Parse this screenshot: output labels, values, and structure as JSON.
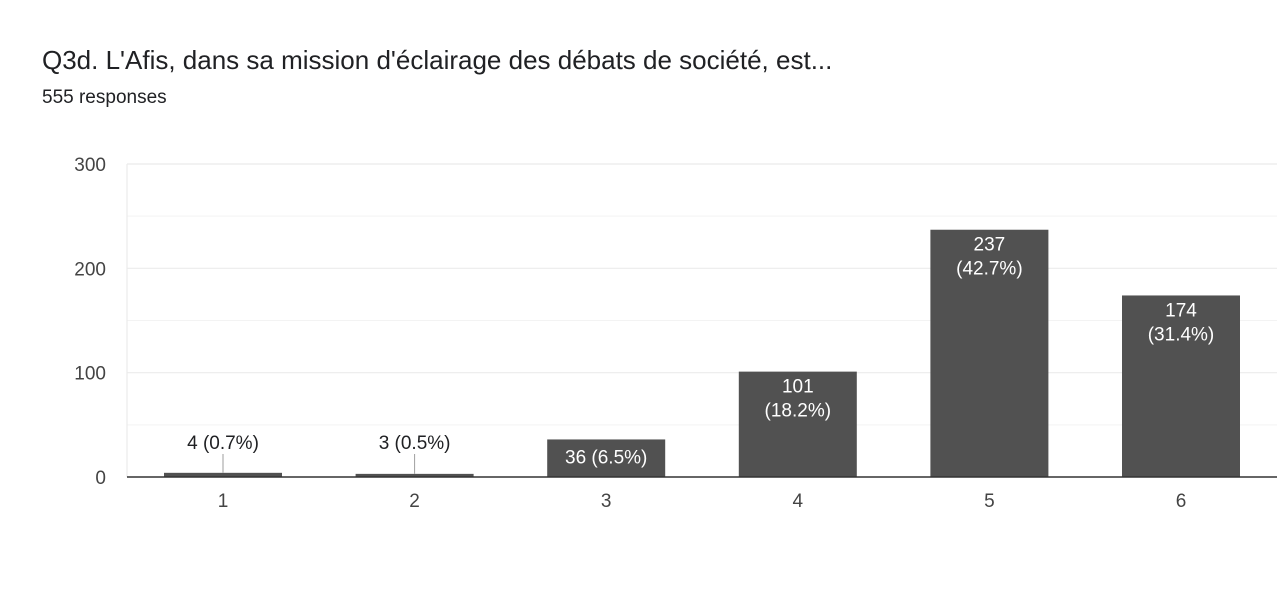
{
  "header": {
    "title": "Q3d. L'Afis, dans sa mission d'éclairage des débats de société, est...",
    "responses": "555 responses"
  },
  "colors": {
    "bar": "#515151",
    "grid": "#ebebeb",
    "axis": "#333333",
    "label_inside": "#ffffff",
    "label_outside": "#202124"
  },
  "chart_data": {
    "type": "bar",
    "categories": [
      "1",
      "2",
      "3",
      "4",
      "5",
      "6"
    ],
    "values": [
      4,
      3,
      36,
      101,
      237,
      174
    ],
    "data_labels": [
      "4 (0.7%)",
      "3 (0.5%)",
      "36 (6.5%)",
      "101 (18.2%)",
      "237 (42.7%)",
      "174 (31.4%)"
    ],
    "ylim": [
      0,
      300
    ],
    "yticks": [
      0,
      100,
      200,
      300
    ],
    "minor_gridlines": [
      50,
      150,
      250
    ],
    "grid": true,
    "legend": false
  }
}
